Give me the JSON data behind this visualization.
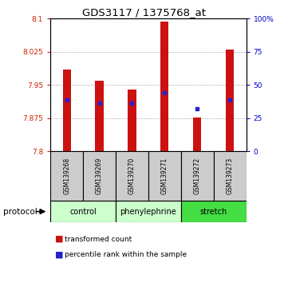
{
  "title": "GDS3117 / 1375768_at",
  "samples": [
    "GSM139268",
    "GSM139269",
    "GSM139270",
    "GSM139271",
    "GSM139272",
    "GSM139273"
  ],
  "red_bar_tops": [
    7.985,
    7.96,
    7.94,
    8.093,
    7.876,
    8.03
  ],
  "red_bar_bottom": 7.8,
  "blue_marker_y": [
    7.916,
    7.909,
    7.909,
    7.932,
    7.896,
    7.916
  ],
  "ylim_left": [
    7.8,
    8.1
  ],
  "ylim_right": [
    0,
    100
  ],
  "yticks_left": [
    7.8,
    7.875,
    7.95,
    8.025,
    8.1
  ],
  "ytick_labels_left": [
    "7.8",
    "7.875",
    "7.95",
    "8.025",
    "8.1"
  ],
  "yticks_right": [
    0,
    25,
    50,
    75,
    100
  ],
  "ytick_labels_right": [
    "0",
    "25",
    "50",
    "75",
    "100%"
  ],
  "bar_color": "#cc1111",
  "blue_color": "#2222cc",
  "bar_width": 0.25,
  "grid_color": "#888888",
  "legend_red_label": "transformed count",
  "legend_blue_label": "percentile rank within the sample",
  "protocol_label": "protocol",
  "left_axis_color": "#cc2200",
  "right_axis_color": "#0000cc",
  "sample_box_color": "#cccccc",
  "groups": [
    {
      "label": "control",
      "start": 0,
      "end": 1,
      "color": "#ccffcc"
    },
    {
      "label": "phenylephrine",
      "start": 2,
      "end": 3,
      "color": "#ccffcc"
    },
    {
      "label": "stretch",
      "start": 4,
      "end": 5,
      "color": "#44dd44"
    }
  ]
}
